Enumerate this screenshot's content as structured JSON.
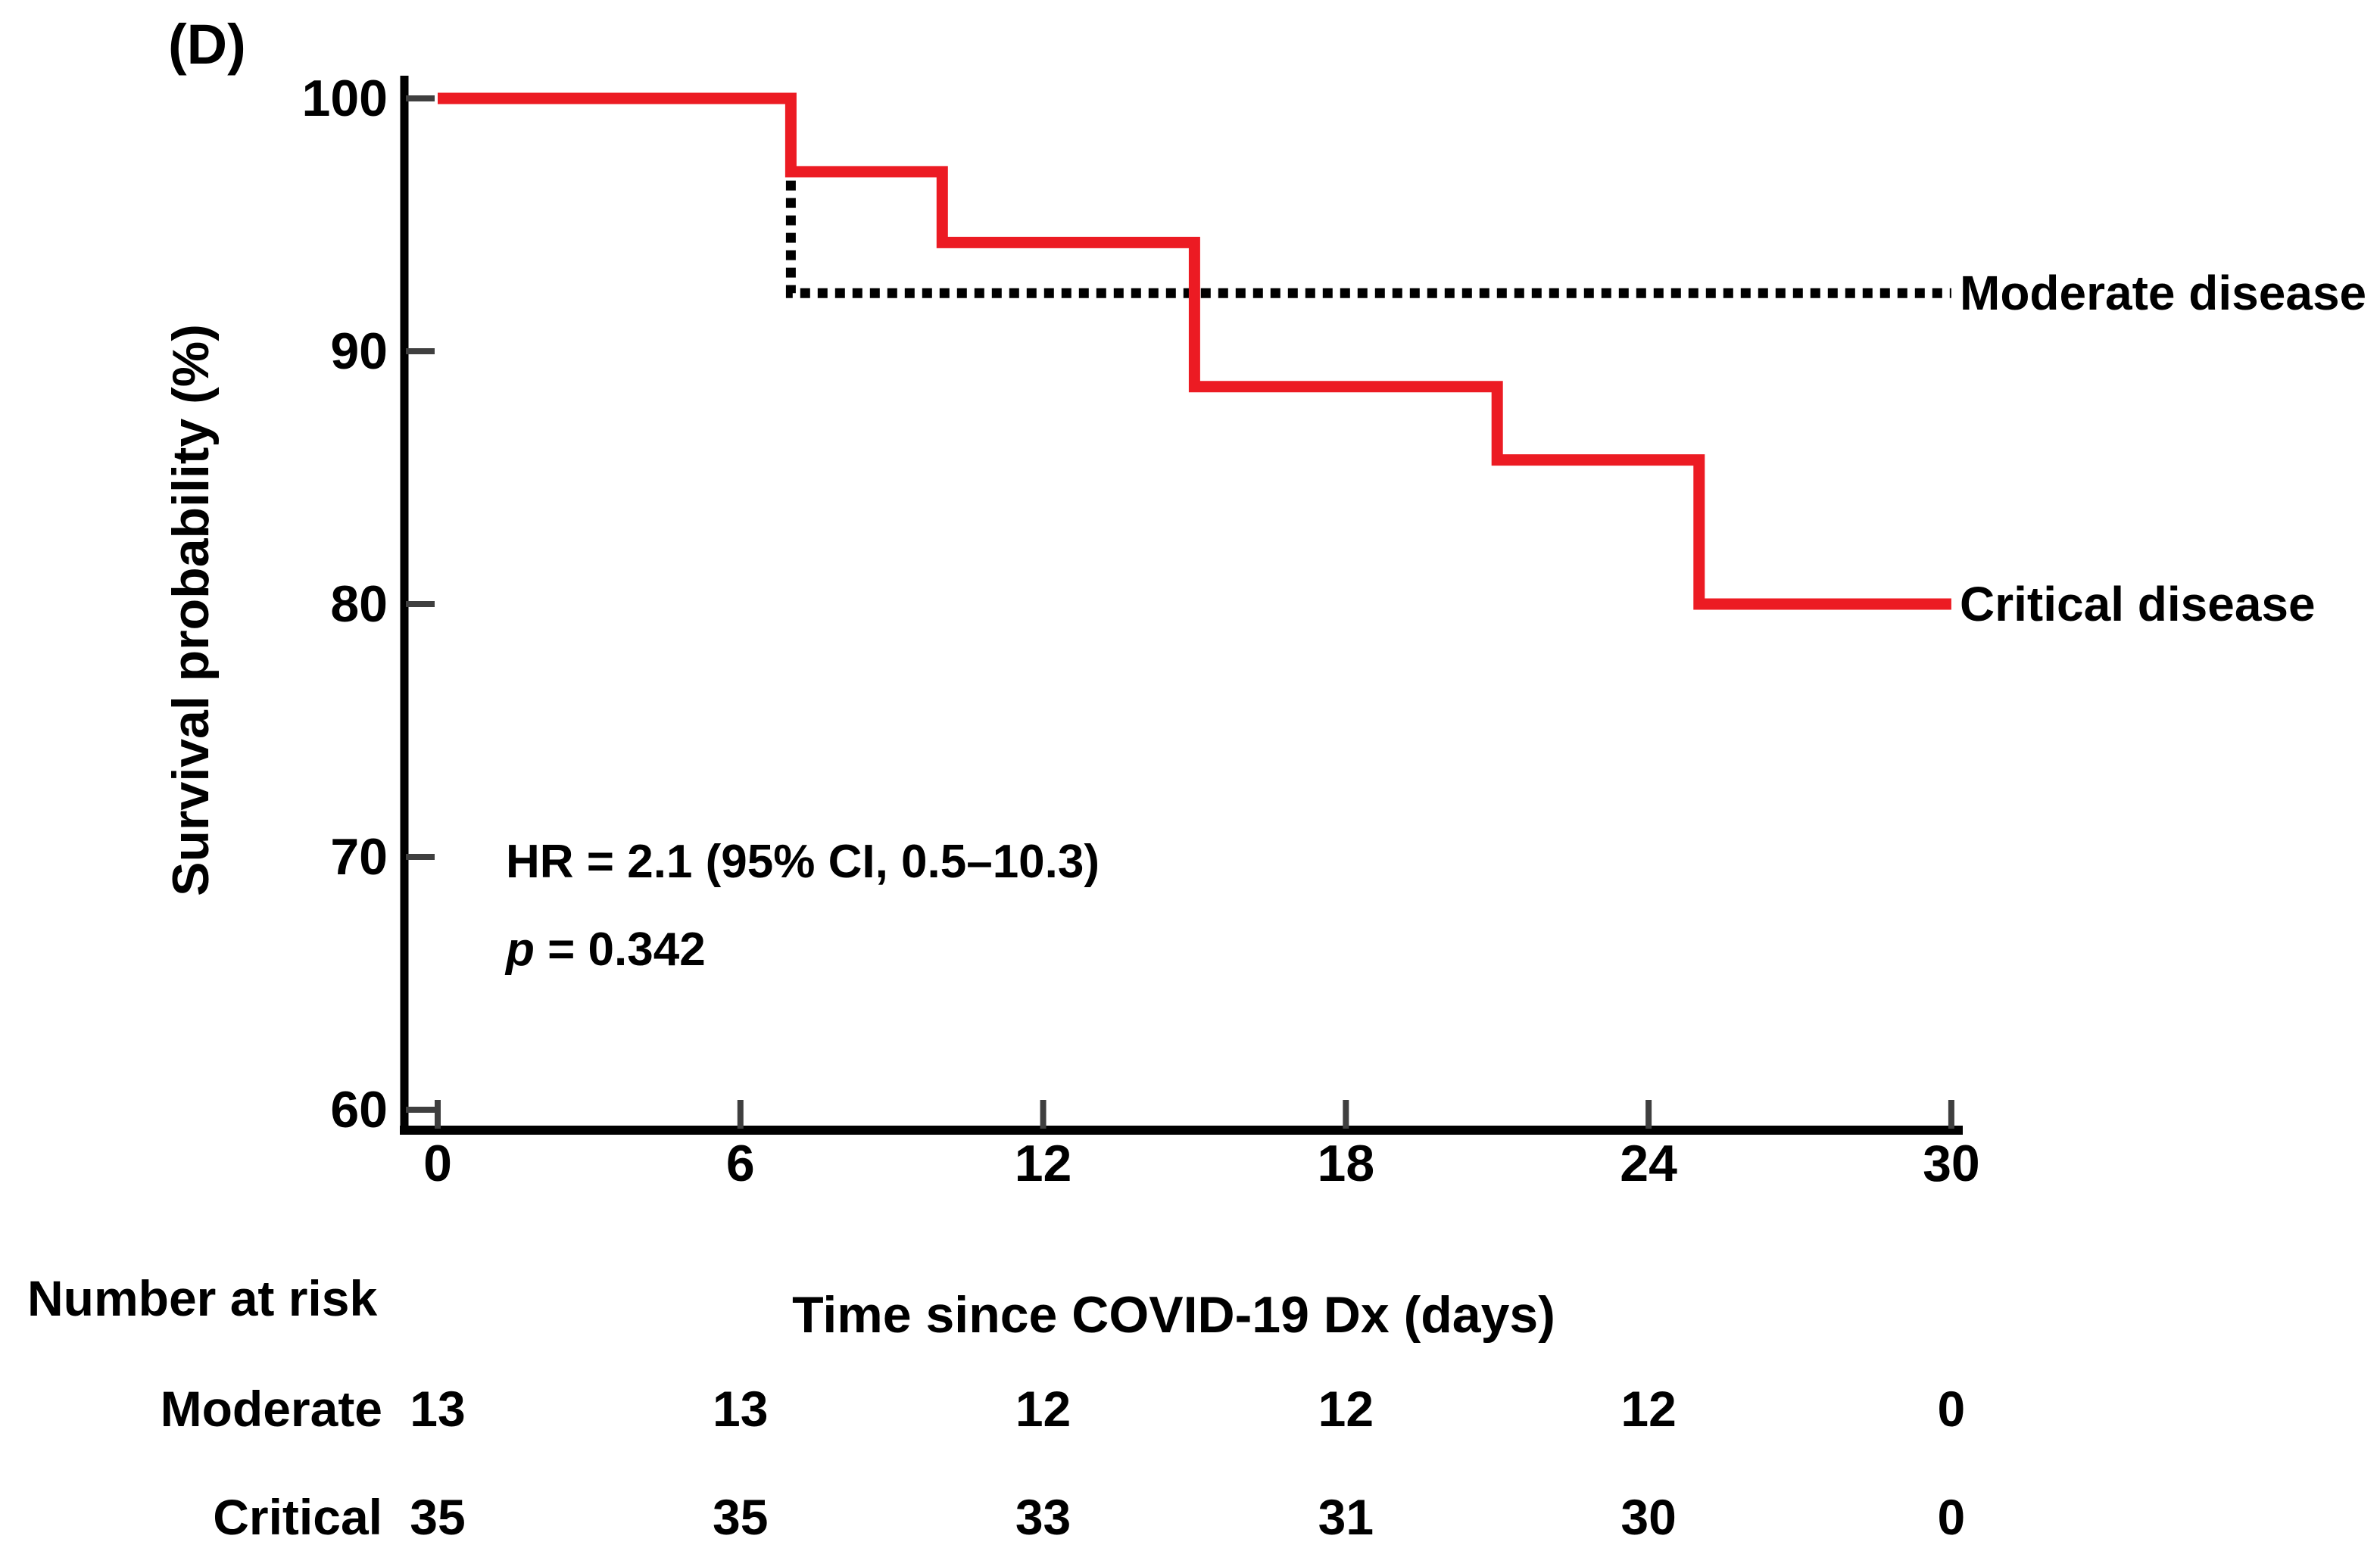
{
  "panel_label": "(D)",
  "chart_data": {
    "type": "line",
    "subtype": "kaplan-meier-step",
    "xlabel": "Time since COVID-19 Dx (days)",
    "ylabel": "Survival probability (%)",
    "xlim": [
      0,
      30
    ],
    "ylim": [
      60,
      100
    ],
    "x_ticks": [
      0,
      6,
      12,
      18,
      24,
      30
    ],
    "y_ticks": [
      100,
      90,
      80,
      70,
      60
    ],
    "grid": false,
    "legend_position": "right-of-line-ends",
    "series": [
      {
        "name": "Moderate disease",
        "style": "dotted",
        "color": "#000000",
        "points": [
          [
            0,
            100
          ],
          [
            7,
            100
          ],
          [
            7,
            92.3
          ],
          [
            30,
            92.3
          ]
        ]
      },
      {
        "name": "Critical disease",
        "style": "solid",
        "color": "#EC1B23",
        "points": [
          [
            0,
            100
          ],
          [
            7,
            100
          ],
          [
            7,
            97.1
          ],
          [
            10,
            97.1
          ],
          [
            10,
            94.3
          ],
          [
            15,
            94.3
          ],
          [
            15,
            88.6
          ],
          [
            21,
            88.6
          ],
          [
            21,
            85.7
          ],
          [
            25,
            85.7
          ],
          [
            25,
            80
          ],
          [
            30,
            80
          ]
        ]
      }
    ],
    "annotations": {
      "hr_line": "HR = 2.1 (95% CI, 0.5–10.3)",
      "p_prefix": "p",
      "p_rest": " = 0.342"
    }
  },
  "legend": {
    "moderate": "Moderate disease",
    "critical": "Critical disease",
    "moderate_level": 92.3,
    "critical_level": 80
  },
  "risk_table": {
    "header": "Number at risk",
    "time_points": [
      0,
      6,
      12,
      18,
      24,
      30
    ],
    "rows": [
      {
        "label": "Moderate",
        "values": [
          "13",
          "13",
          "12",
          "12",
          "12",
          "0"
        ]
      },
      {
        "label": "Critical",
        "values": [
          "35",
          "35",
          "33",
          "31",
          "30",
          "0"
        ]
      }
    ]
  },
  "colors": {
    "critical_line": "#EC1B23",
    "moderate_line": "#000000",
    "axis": "#000000",
    "tick": "#3F3F3F",
    "text": "#000000",
    "background": "#FFFFFF"
  }
}
